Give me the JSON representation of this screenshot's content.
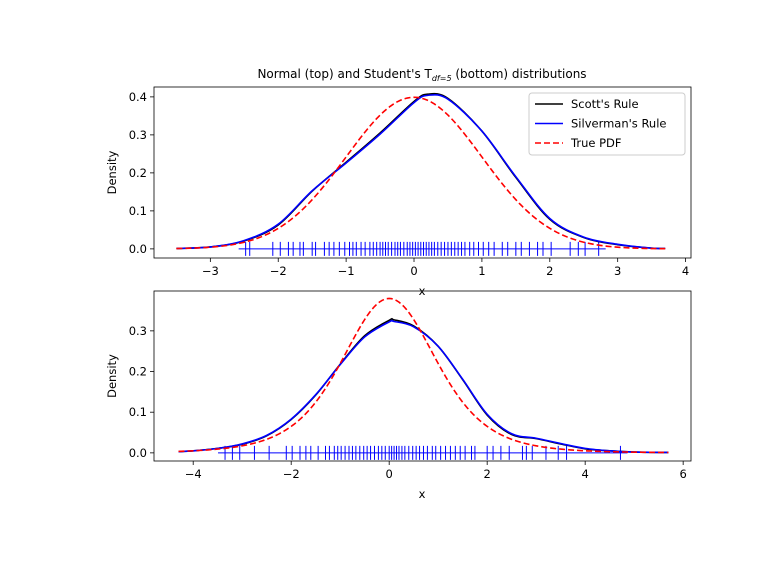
{
  "chart_data": [
    {
      "type": "line",
      "title": "Normal (top) and Student's T",
      "title_sub": "df=5",
      "title_end": " (bottom) distributions",
      "xlabel": "x",
      "ylabel": "Density",
      "xlim": [
        -3.83,
        4.08
      ],
      "ylim": [
        -0.024,
        0.426
      ],
      "xticks": [
        -3,
        -2,
        -1,
        0,
        1,
        2,
        3,
        4
      ],
      "yticks": [
        0.0,
        0.1,
        0.2,
        0.3,
        0.4
      ],
      "legend": {
        "placement": "top-right",
        "entries": [
          "Scott's Rule",
          "Silverman's Rule",
          "True PDF"
        ]
      },
      "true_pdf": {
        "distribution": "normal",
        "x_range": [
          -3.5,
          3.7
        ]
      },
      "series": [
        {
          "name": "Scott's Rule",
          "color": "#000000",
          "x": [
            -3.5,
            -3,
            -2.5,
            -2,
            -1.5,
            -1,
            -0.5,
            0,
            0.2,
            0.5,
            1,
            1.5,
            2,
            2.5,
            3,
            3.5,
            3.7
          ],
          "y": [
            0.001,
            0.005,
            0.021,
            0.063,
            0.152,
            0.228,
            0.305,
            0.388,
            0.407,
            0.396,
            0.31,
            0.188,
            0.078,
            0.03,
            0.011,
            0.002,
            0.001
          ]
        },
        {
          "name": "Silverman's Rule",
          "color": "#0000ff",
          "x": [
            -3.5,
            -3,
            -2.5,
            -2,
            -1.5,
            -1,
            -0.5,
            0,
            0.2,
            0.5,
            1,
            1.5,
            2,
            2.5,
            3,
            3.5,
            3.7
          ],
          "y": [
            0.001,
            0.005,
            0.022,
            0.065,
            0.153,
            0.226,
            0.302,
            0.385,
            0.404,
            0.394,
            0.31,
            0.19,
            0.08,
            0.031,
            0.012,
            0.002,
            0.001
          ]
        }
      ],
      "rug": [
        -2.48,
        -2.42,
        -2.08,
        -1.97,
        -1.85,
        -1.78,
        -1.68,
        -1.63,
        -1.5,
        -1.45,
        -1.32,
        -1.25,
        -1.18,
        -1.1,
        -1.02,
        -0.95,
        -0.9,
        -0.85,
        -0.78,
        -0.72,
        -0.65,
        -0.6,
        -0.55,
        -0.5,
        -0.46,
        -0.42,
        -0.38,
        -0.33,
        -0.28,
        -0.24,
        -0.2,
        -0.15,
        -0.1,
        -0.06,
        -0.02,
        0.02,
        0.06,
        0.1,
        0.14,
        0.18,
        0.22,
        0.26,
        0.3,
        0.35,
        0.4,
        0.45,
        0.5,
        0.55,
        0.6,
        0.65,
        0.7,
        0.75,
        0.82,
        0.88,
        0.95,
        1.02,
        1.1,
        1.18,
        1.3,
        1.38,
        1.5,
        1.58,
        1.7,
        1.82,
        1.9,
        2.02,
        2.3,
        2.42,
        2.52,
        2.72
      ]
    },
    {
      "type": "line",
      "title": "",
      "xlabel": "x",
      "ylabel": "Density",
      "xlim": [
        -4.8,
        6.16
      ],
      "ylim": [
        -0.02,
        0.398
      ],
      "xticks": [
        -4,
        -2,
        0,
        2,
        4,
        6
      ],
      "yticks": [
        0.0,
        0.1,
        0.2,
        0.3
      ],
      "true_pdf": {
        "distribution": "student-t",
        "df": 5,
        "x_range": [
          -4.3,
          5.7
        ]
      },
      "series": [
        {
          "name": "Scott's Rule",
          "color": "#000000",
          "x": [
            -4.3,
            -4,
            -3.5,
            -3,
            -2.5,
            -2,
            -1.5,
            -1,
            -0.5,
            0,
            0.1,
            0.5,
            1,
            1.5,
            2,
            2.5,
            3,
            3.5,
            4,
            4.5,
            5,
            5.7
          ],
          "y": [
            0.003,
            0.005,
            0.011,
            0.021,
            0.042,
            0.082,
            0.142,
            0.218,
            0.288,
            0.326,
            0.327,
            0.312,
            0.262,
            0.18,
            0.093,
            0.045,
            0.035,
            0.022,
            0.01,
            0.005,
            0.002,
            0.001
          ]
        },
        {
          "name": "Silverman's Rule",
          "color": "#0000ff",
          "x": [
            -4.3,
            -4,
            -3.5,
            -3,
            -2.5,
            -2,
            -1.5,
            -1,
            -0.5,
            0,
            0.1,
            0.5,
            1,
            1.5,
            2,
            2.5,
            3,
            3.5,
            4,
            4.5,
            5,
            5.7
          ],
          "y": [
            0.003,
            0.005,
            0.011,
            0.022,
            0.043,
            0.083,
            0.143,
            0.217,
            0.285,
            0.322,
            0.323,
            0.31,
            0.262,
            0.181,
            0.095,
            0.047,
            0.036,
            0.023,
            0.011,
            0.005,
            0.002,
            0.001
          ]
        }
      ],
      "rug": [
        -3.35,
        -3.2,
        -3.05,
        -2.75,
        -2.45,
        -2.1,
        -1.98,
        -1.82,
        -1.7,
        -1.6,
        -1.45,
        -1.3,
        -1.22,
        -1.12,
        -1.05,
        -0.98,
        -0.9,
        -0.82,
        -0.75,
        -0.68,
        -0.6,
        -0.52,
        -0.45,
        -0.38,
        -0.3,
        -0.22,
        -0.15,
        -0.08,
        0.0,
        0.05,
        0.1,
        0.15,
        0.2,
        0.26,
        0.32,
        0.4,
        0.48,
        0.55,
        0.62,
        0.7,
        0.78,
        0.88,
        0.95,
        1.05,
        1.15,
        1.25,
        1.35,
        1.45,
        1.55,
        1.68,
        1.75,
        2.0,
        2.12,
        2.28,
        2.45,
        2.72,
        2.8,
        2.92,
        3.2,
        3.45,
        3.62,
        4.72
      ]
    }
  ]
}
